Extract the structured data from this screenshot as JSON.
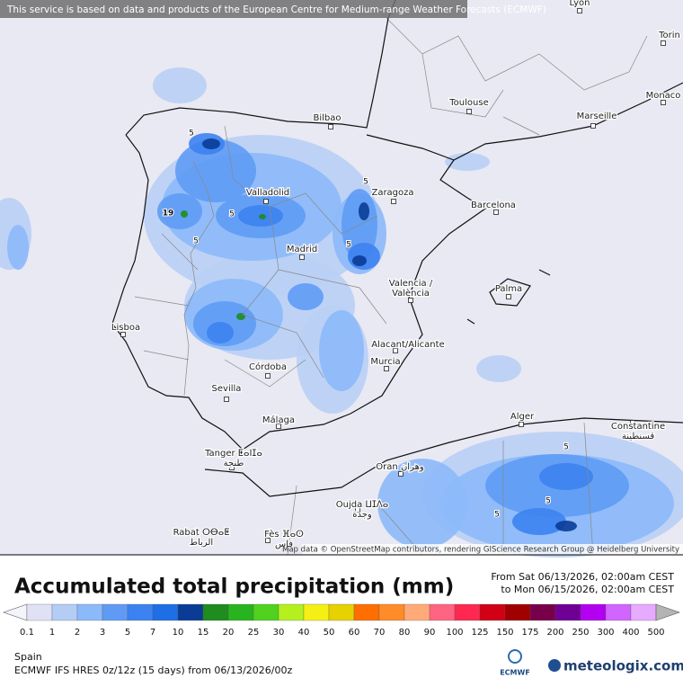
{
  "notice": "This service is based on data and products of the European Centre for Medium-range Weather Forecasts (ECMWF)",
  "attribution": "Map data © OpenStreetMap contributors, rendering GIScience Research Group @ Heidelberg University",
  "cities": [
    {
      "lines": [
        "Lyon"
      ]
    },
    {
      "lines": [
        "Torin"
      ]
    },
    {
      "lines": [
        "Toulouse"
      ]
    },
    {
      "lines": [
        "Monaco"
      ]
    },
    {
      "lines": [
        "Marseille"
      ]
    },
    {
      "lines": [
        "Bilbao"
      ]
    },
    {
      "lines": [
        "Zaragoza"
      ]
    },
    {
      "lines": [
        "Barcelona"
      ]
    },
    {
      "lines": [
        "Valladolid"
      ]
    },
    {
      "lines": [
        "Madrid"
      ]
    },
    {
      "lines": [
        "Valencia /",
        "València"
      ]
    },
    {
      "lines": [
        "Palma"
      ]
    },
    {
      "lines": [
        "Lisboa"
      ]
    },
    {
      "lines": [
        "Alacant/Alicante"
      ]
    },
    {
      "lines": [
        "Murcia"
      ]
    },
    {
      "lines": [
        "Córdoba"
      ]
    },
    {
      "lines": [
        "Sevilla"
      ]
    },
    {
      "lines": [
        "Málaga"
      ]
    },
    {
      "lines": [
        "Alger"
      ]
    },
    {
      "lines": [
        "Constantine",
        "قسنطينة"
      ]
    },
    {
      "lines": [
        "Tanger ⵟⴰⵏⵊⴰ",
        "طنجة"
      ]
    },
    {
      "lines": [
        "Oran وهران"
      ]
    },
    {
      "lines": [
        "Oujda ⵡⵊⴷⴰ",
        "وجدة"
      ]
    },
    {
      "lines": [
        "Rabat ⵔⴱⴰⵟ",
        "الرباط"
      ]
    },
    {
      "lines": [
        "Fès ⴼⴰⵙ",
        "فاس"
      ]
    }
  ],
  "contour_labels": [
    "19",
    "5",
    "5",
    "5",
    "5",
    "5",
    "5",
    "5",
    "5"
  ],
  "legend": {
    "title": "Accumulated total precipitation (mm)",
    "from": "From Sat 06/13/2026, 02:00am CEST",
    "to": "to Mon 06/15/2026, 02:00am CEST",
    "scale": [
      {
        "label": "0.1",
        "color": "#e1e1f5"
      },
      {
        "label": "1",
        "color": "#b4cdf5"
      },
      {
        "label": "2",
        "color": "#8cb9fa"
      },
      {
        "label": "3",
        "color": "#5f9bf5"
      },
      {
        "label": "5",
        "color": "#3c82f0"
      },
      {
        "label": "7",
        "color": "#1e6ee6"
      },
      {
        "label": "10",
        "color": "#0a3c96"
      },
      {
        "label": "15",
        "color": "#1e8c1e"
      },
      {
        "label": "20",
        "color": "#28b41e"
      },
      {
        "label": "25",
        "color": "#50d21e"
      },
      {
        "label": "30",
        "color": "#b4f01e"
      },
      {
        "label": "40",
        "color": "#f5f014"
      },
      {
        "label": "50",
        "color": "#e6d200"
      },
      {
        "label": "60",
        "color": "#ff6e00"
      },
      {
        "label": "70",
        "color": "#ff8c28"
      },
      {
        "label": "80",
        "color": "#ffaa78"
      },
      {
        "label": "90",
        "color": "#ff6482"
      },
      {
        "label": "100",
        "color": "#ff2850"
      },
      {
        "label": "125",
        "color": "#d20014"
      },
      {
        "label": "150",
        "color": "#a00000"
      },
      {
        "label": "175",
        "color": "#78004b"
      },
      {
        "label": "200",
        "color": "#6e0096"
      },
      {
        "label": "250",
        "color": "#b400f0"
      },
      {
        "label": "300",
        "color": "#d264ff"
      },
      {
        "label": "400",
        "color": "#e6aaff"
      },
      {
        "label": "500",
        "color": "#b4b4b4"
      }
    ]
  },
  "footer": {
    "region": "Spain",
    "model": "ECMWF IFS HRES 0z/12z (15 days) from  06/13/2026/00z",
    "ecmwf": "ECMWF",
    "brand": "meteologix.com"
  }
}
